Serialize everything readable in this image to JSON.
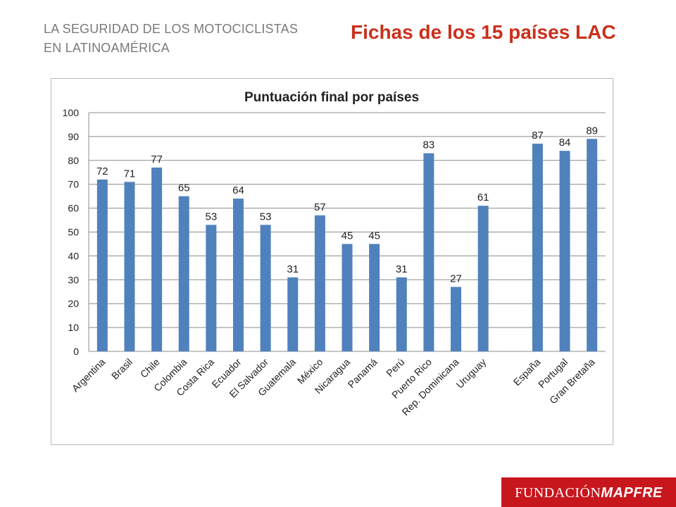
{
  "header": {
    "subtitle_line1": "LA SEGURIDAD DE LOS MOTOCICLISTAS",
    "subtitle_line2": "EN LATINOAMÉRICA",
    "title": "Fichas de los 15 países LAC"
  },
  "logo": {
    "part1": "FUNDACIÓN",
    "part2": "MAPFRE"
  },
  "colors": {
    "title": "#c9301c",
    "bar": "#4f81bd",
    "logo_bg": "#c8161d"
  },
  "chart_data": {
    "type": "bar",
    "title": "Puntuación final por países",
    "categories": [
      "Argentina",
      "Brasil",
      "Chile",
      "Colombia",
      "Costa Rica",
      "Ecuador",
      "El Salvador",
      "Guatemala",
      "México",
      "Nicaragua",
      "Panamá",
      "Perú",
      "Puerto Rico",
      "Rep. Dominicana",
      "Uruguay",
      "",
      "España",
      "Portugal",
      "Gran Bretaña"
    ],
    "values": [
      72,
      71,
      77,
      65,
      53,
      64,
      53,
      31,
      57,
      45,
      45,
      31,
      83,
      27,
      61,
      null,
      87,
      84,
      89
    ],
    "ylim": [
      0,
      100
    ],
    "yticks": [
      0,
      10,
      20,
      30,
      40,
      50,
      60,
      70,
      80,
      90,
      100
    ],
    "grid": true,
    "data_labels": true,
    "xlabel": "",
    "ylabel": ""
  }
}
